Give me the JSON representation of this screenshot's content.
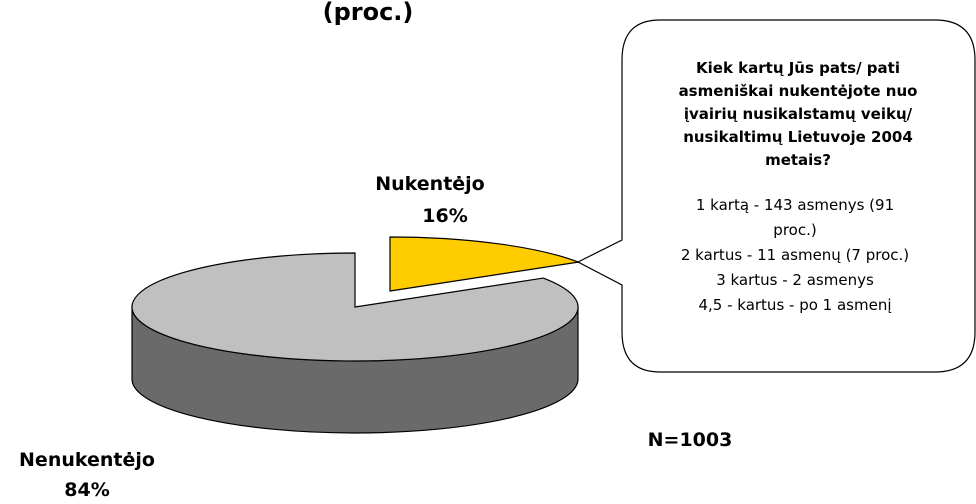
{
  "chart_data": {
    "type": "pie",
    "title": "(proc.)",
    "categories": [
      "Nukentėjo",
      "Nenukentėjo"
    ],
    "values": [
      16,
      84
    ],
    "value_labels": [
      "16%",
      "84%"
    ],
    "colors": [
      "#ffcc00",
      "#c0c0c0"
    ],
    "annotations": {
      "sample": "N=1003",
      "callout_title": [
        "Kiek kartų Jūs pats/ pati",
        "asmeniškai nukentėjote nuo",
        "įvairių nusikalstamų veikų/",
        "nusikaltimų Lietuvoje 2004",
        "metais?"
      ],
      "callout_lines": [
        "1 kartą - 143 asmenys (91",
        "proc.)",
        "2 kartus - 11 asmenų (7 proc.)",
        "3 kartus - 2 asmenys",
        "4,5 - kartus - po 1 asmenį"
      ]
    }
  }
}
